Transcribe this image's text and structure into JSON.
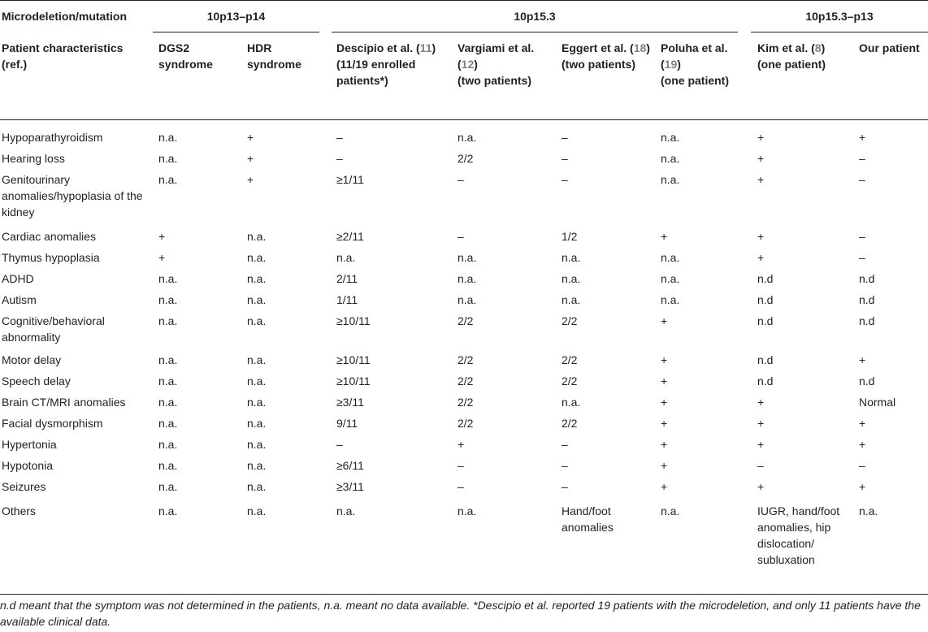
{
  "header": {
    "row_label": "Microdeletion/mutation",
    "groups": [
      "10p13–p14",
      "10p15.3",
      "10p15.3–p13"
    ],
    "col_label": "Patient characteristics (ref.)",
    "columns": [
      "DGS2 syndrome",
      "HDR syndrome",
      {
        "pre": "Descipio et al. (",
        "ref": "11",
        "post": ")\n(11/19 enrolled patients*)"
      },
      {
        "pre": "Vargiami et al. (",
        "ref": "12",
        "post": ")\n(two patients)"
      },
      {
        "pre": "Eggert et al. (",
        "ref": "18",
        "post": ")\n(two patients)"
      },
      {
        "pre": "Poluha et al. (",
        "ref": "19",
        "post": ")\n(one patient)"
      },
      {
        "pre": "Kim et al. (",
        "ref": "8",
        "post": ")\n(one patient)"
      },
      "Our patient"
    ]
  },
  "rows": [
    [
      "Hypoparathyroidism",
      "n.a.",
      "+",
      "–",
      "n.a.",
      "–",
      "n.a.",
      "+",
      "+"
    ],
    [
      "Hearing loss",
      "n.a.",
      "+",
      "–",
      "2/2",
      "–",
      "n.a.",
      "+",
      "–"
    ],
    [
      "Genitourinary anomalies/hypoplasia of the kidney",
      "n.a.",
      "+",
      "≥1/11",
      "–",
      "–",
      "n.a.",
      "+",
      "–"
    ],
    [
      "Cardiac anomalies",
      "+",
      "n.a.",
      "≥2/11",
      "–",
      "1/2",
      "+",
      "+",
      "–"
    ],
    [
      "Thymus hypoplasia",
      "+",
      "n.a.",
      "n.a.",
      "n.a.",
      "n.a.",
      "n.a.",
      "+",
      "–"
    ],
    [
      "ADHD",
      "n.a.",
      "n.a.",
      "2/11",
      "n.a.",
      "n.a.",
      "n.a.",
      "n.d",
      "n.d"
    ],
    [
      "Autism",
      "n.a.",
      "n.a.",
      "1/11",
      "n.a.",
      "n.a.",
      "n.a.",
      "n.d",
      "n.d"
    ],
    [
      "Cognitive/behavioral abnormality",
      "n.a.",
      "n.a.",
      "≥10/11",
      "2/2",
      "2/2",
      "+",
      "n.d",
      "n.d"
    ],
    [
      "Motor delay",
      "n.a.",
      "n.a.",
      "≥10/11",
      "2/2",
      "2/2",
      "+",
      "n.d",
      "+"
    ],
    [
      "Speech delay",
      "n.a.",
      "n.a.",
      "≥10/11",
      "2/2",
      "2/2",
      "+",
      "n.d",
      "n.d"
    ],
    [
      "Brain CT/MRI anomalies",
      "n.a.",
      "n.a.",
      "≥3/11",
      "2/2",
      "n.a.",
      "+",
      "+",
      "Normal"
    ],
    [
      "Facial dysmorphism",
      "n.a.",
      "n.a.",
      "9/11",
      "2/2",
      "2/2",
      "+",
      "+",
      "+"
    ],
    [
      "Hypertonia",
      "n.a.",
      "n.a.",
      "–",
      "+",
      "–",
      "+",
      "+",
      "+"
    ],
    [
      "Hypotonia",
      "n.a.",
      "n.a.",
      "≥6/11",
      "–",
      "–",
      "+",
      "–",
      "–"
    ],
    [
      "Seizures",
      "n.a.",
      "n.a.",
      "≥3/11",
      "–",
      "–",
      "+",
      "+",
      "+"
    ],
    [
      "Others",
      "n.a.",
      "n.a.",
      "n.a.",
      "n.a.",
      "Hand/foot anomalies",
      "n.a.",
      "IUGR, hand/foot anomalies, hip dislocation/ subluxation",
      "n.a."
    ]
  ],
  "footnote": "n.d meant that the symptom was not determined in the patients, n.a. meant no data available. *Descipio et al. reported 19 patients with the microdeletion, and only 11 patients have the available clinical data."
}
